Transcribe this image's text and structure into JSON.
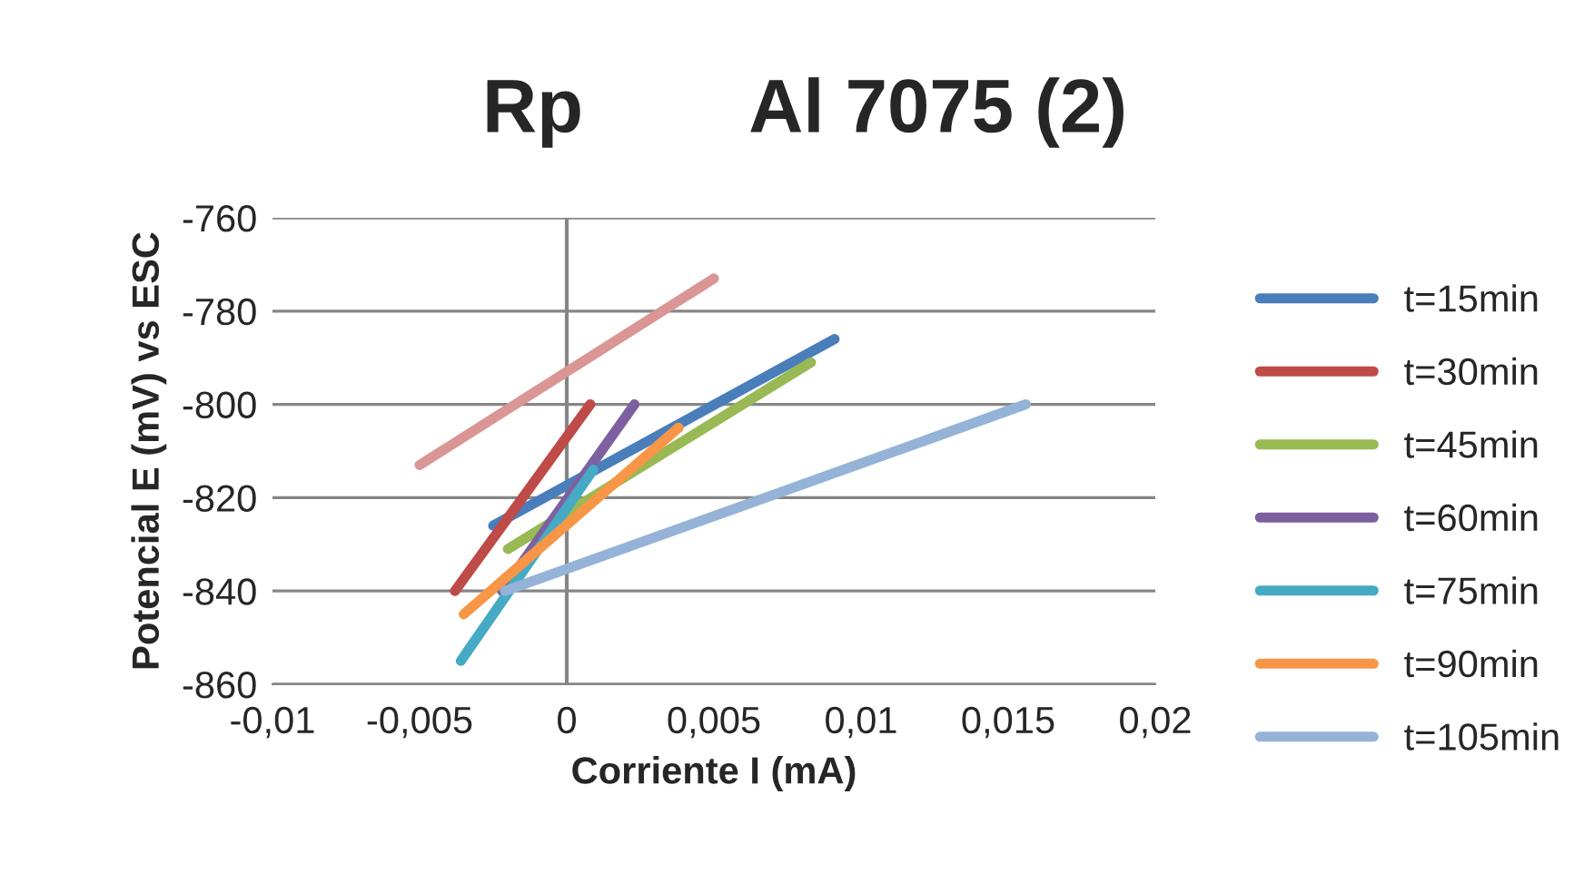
{
  "chart_data": {
    "type": "line",
    "title": "Rp        Al 7075 (2)",
    "xlabel": "Corriente I (mA)",
    "ylabel": "Potencial E (mV) vs ESC",
    "xlim": [
      -0.01,
      0.02
    ],
    "xticks": [
      {
        "value": -0.01,
        "label": "-0,01"
      },
      {
        "value": -0.005,
        "label": "-0,005"
      },
      {
        "value": 0,
        "label": "0"
      },
      {
        "value": 0.005,
        "label": "0,005"
      },
      {
        "value": 0.01,
        "label": "0,01"
      },
      {
        "value": 0.015,
        "label": "0,015"
      },
      {
        "value": 0.02,
        "label": "0,02"
      }
    ],
    "ylim": [
      -860,
      -760
    ],
    "yticks": [
      -860,
      -840,
      -820,
      -800,
      -780,
      -760
    ],
    "grid": "y",
    "legend": "right",
    "marker": "none",
    "line_style": "solid",
    "series": [
      {
        "name": "t=15min",
        "color": "#4a7ebb",
        "x": [
          -0.0025,
          0.0091
        ],
        "values": [
          -826,
          -786
        ]
      },
      {
        "name": "t=30min",
        "color": "#be4b48",
        "x": [
          -0.0038,
          0.0008
        ],
        "values": [
          -840,
          -800
        ]
      },
      {
        "name": "t=45min",
        "color": "#98b954",
        "x": [
          -0.002,
          0.0083
        ],
        "values": [
          -831,
          -791
        ]
      },
      {
        "name": "t=60min",
        "color": "#7d60a0",
        "x": [
          -0.0022,
          0.0023
        ],
        "values": [
          -840,
          -800
        ]
      },
      {
        "name": "t=75min",
        "color": "#46aac5",
        "x": [
          -0.0036,
          0.0009
        ],
        "values": [
          -855,
          -814
        ]
      },
      {
        "name": "t=90min",
        "color": "#f79646",
        "x": [
          -0.0035,
          0.0038
        ],
        "values": [
          -845,
          -805
        ]
      },
      {
        "name": "t=105min",
        "color": "#95b3d7",
        "x": [
          -0.0021,
          0.0156
        ],
        "values": [
          -840,
          -800
        ]
      },
      {
        "color": "#d99694",
        "x": [
          -0.005,
          0.005
        ],
        "values": [
          -813,
          -773
        ]
      }
    ]
  }
}
